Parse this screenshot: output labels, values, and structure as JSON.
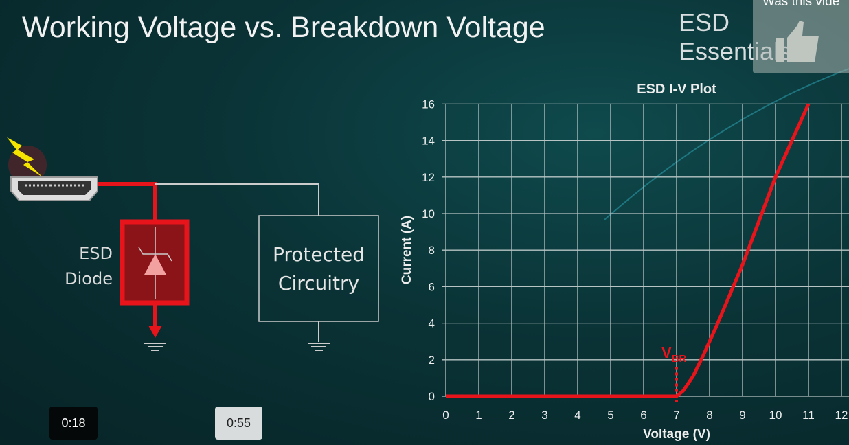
{
  "slide": {
    "title": "Working Voltage vs. Breakdown Voltage",
    "brand": "ESD Essentials",
    "diagram": {
      "diode_label_line1": "ESD",
      "diode_label_line2": "Diode",
      "circuit_label_line1": "Protected",
      "circuit_label_line2": "Circuitry",
      "accent_color": "#e8141b"
    }
  },
  "video": {
    "feedback_prompt": "Was this vide",
    "feedback_icon": "thumbs-up-icon",
    "time_badge_1": "0:18",
    "time_badge_2": "0:55"
  },
  "chart_data": {
    "type": "line",
    "title": "ESD I-V Plot",
    "xlabel": "Voltage (V)",
    "ylabel": "Current (A)",
    "xlim": [
      0,
      12
    ],
    "ylim": [
      0,
      16
    ],
    "xticks": [
      0,
      1,
      2,
      3,
      4,
      5,
      6,
      7,
      8,
      9,
      10,
      11,
      12
    ],
    "yticks": [
      0,
      2,
      4,
      6,
      8,
      10,
      12,
      14,
      16
    ],
    "grid": true,
    "series": [
      {
        "color": "#e8141b",
        "x": [
          0,
          7,
          7.2,
          7.5,
          7.8,
          8.2,
          8.6,
          9,
          9.5,
          10,
          10.5,
          11
        ],
        "y": [
          0,
          0,
          0.3,
          1.1,
          2.2,
          3.8,
          5.5,
          7.2,
          9.6,
          12,
          14,
          16
        ]
      }
    ],
    "annotations": [
      {
        "text": "V",
        "subscript": "BR",
        "x": 7,
        "style": "dotted vertical line"
      }
    ]
  }
}
